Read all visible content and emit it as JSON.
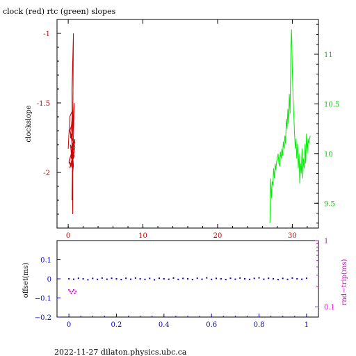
{
  "page": {
    "title": "clock (red) rtc (green) slopes",
    "footer": "2022-11-27  dilaton.physics.ubc.ca"
  },
  "colors": {
    "clock": "#d00000",
    "rtc": "#00ee00",
    "offset": "#0000cc",
    "roundtrip": "#dd00dd",
    "axis": "#000000"
  },
  "chart_data": [
    {
      "type": "line",
      "title": "clock (red) rtc (green) slopes",
      "ylabel": "clockslope",
      "xlim": [
        -1.5,
        33.5
      ],
      "ylim": [
        -2.4,
        -0.9
      ],
      "y2lim": [
        9.25,
        11.35
      ],
      "xticks": [
        0,
        10,
        20,
        30
      ],
      "yticks": [
        -1,
        -1.5,
        -2
      ],
      "y2ticks": [
        11,
        10.5,
        10,
        9.5
      ],
      "xtick_labels": [
        "0",
        "10",
        "20",
        "30"
      ],
      "ytick_labels": [
        "-1",
        "-1.5",
        "-2"
      ],
      "y2tick_labels": [
        "11",
        "10.5",
        "10",
        "9.5"
      ],
      "series": [
        {
          "name": "clock",
          "axis": "left",
          "x": [
            0.0,
            0.2,
            0.6,
            0.3,
            0.9,
            0.1,
            0.5,
            0.8,
            0.2,
            0.7,
            0.4,
            0.9,
            0.1,
            0.6,
            0.3,
            0.8,
            0.5,
            0.2,
            0.9,
            0.4,
            0.7,
            0.6,
            0.6,
            0.5,
            0.7,
            0.6,
            0.8,
            0.5,
            0.6
          ],
          "values": [
            -1.83,
            -1.6,
            -1.55,
            -1.75,
            -1.78,
            -1.92,
            -1.95,
            -1.85,
            -1.7,
            -1.62,
            -1.9,
            -1.76,
            -1.93,
            -1.97,
            -1.8,
            -1.88,
            -1.93,
            -1.97,
            -1.82,
            -1.72,
            -1.95,
            -2.0,
            -2.3,
            -1.4,
            -1.0,
            -1.7,
            -1.5,
            -2.2,
            -1.8
          ]
        },
        {
          "name": "rtc",
          "axis": "right",
          "x": [
            27.0,
            27.1,
            27.2,
            27.3,
            27.4,
            27.5,
            27.6,
            27.7,
            27.8,
            27.9,
            28.0,
            28.1,
            28.2,
            28.3,
            28.4,
            28.5,
            28.6,
            28.7,
            28.8,
            28.9,
            29.0,
            29.1,
            29.2,
            29.3,
            29.4,
            29.5,
            29.6,
            29.7,
            29.8,
            29.9,
            30.0,
            30.1,
            30.2,
            30.3,
            30.4,
            30.5,
            30.6,
            30.7,
            30.8,
            30.9,
            31.0,
            31.1,
            31.2,
            31.3,
            31.4,
            31.5,
            31.6,
            31.7,
            31.8,
            31.9,
            32.0,
            32.1,
            32.2,
            32.4
          ],
          "values": [
            9.3,
            9.75,
            9.55,
            9.72,
            9.68,
            9.85,
            9.75,
            9.9,
            9.83,
            9.92,
            9.95,
            10.0,
            9.9,
            9.87,
            10.02,
            9.95,
            10.05,
            9.98,
            10.12,
            10.05,
            10.18,
            10.1,
            10.35,
            10.25,
            10.45,
            10.3,
            10.6,
            10.4,
            11.05,
            11.25,
            10.85,
            10.55,
            10.4,
            10.2,
            10.05,
            10.15,
            9.95,
            10.1,
            9.85,
            10.0,
            9.7,
            9.9,
            9.8,
            10.05,
            9.75,
            9.95,
            9.85,
            10.1,
            9.9,
            10.2,
            10.0,
            10.15,
            10.1,
            10.18
          ]
        }
      ]
    },
    {
      "type": "scatter",
      "ylabel": "offset(ms)",
      "y2label": "rnd−trip(ms)",
      "xlim": [
        -0.05,
        1.05
      ],
      "ylim": [
        -0.2,
        0.2
      ],
      "y2lim_log": [
        0.07,
        1.0
      ],
      "xticks": [
        0,
        0.2,
        0.4,
        0.6,
        0.8,
        1
      ],
      "xtick_labels": [
        "0",
        "0.2",
        "0.4",
        "0.6",
        "0.8",
        "1"
      ],
      "yticks": [
        0.1,
        0,
        -0.1,
        -0.2
      ],
      "ytick_labels": [
        "0.1",
        "0",
        "−0.1",
        "−0.2"
      ],
      "y2ticks": [
        1,
        0.1
      ],
      "y2tick_labels": [
        "1",
        "0.1"
      ],
      "series": [
        {
          "name": "offset",
          "axis": "left",
          "x": [
            0.0,
            0.02,
            0.04,
            0.06,
            0.08,
            0.1,
            0.12,
            0.14,
            0.16,
            0.18,
            0.2,
            0.22,
            0.24,
            0.26,
            0.28,
            0.3,
            0.32,
            0.34,
            0.36,
            0.38,
            0.4,
            0.42,
            0.44,
            0.46,
            0.48,
            0.5,
            0.52,
            0.54,
            0.56,
            0.58,
            0.6,
            0.62,
            0.64,
            0.66,
            0.68,
            0.7,
            0.72,
            0.74,
            0.76,
            0.78,
            0.8,
            0.82,
            0.84,
            0.86,
            0.88,
            0.9,
            0.92,
            0.94,
            0.96,
            0.98,
            1.0
          ],
          "values": [
            0.0,
            -0.002,
            0.003,
            0.0,
            -0.005,
            0.002,
            -0.003,
            0.004,
            -0.002,
            0.003,
            0.0,
            -0.004,
            0.003,
            -0.002,
            0.004,
            0.0,
            -0.003,
            0.002,
            -0.005,
            0.003,
            0.0,
            -0.002,
            0.004,
            -0.003,
            0.002,
            0.0,
            -0.004,
            0.003,
            -0.002,
            0.005,
            -0.003,
            0.002,
            0.0,
            -0.004,
            0.003,
            -0.002,
            0.004,
            0.0,
            -0.003,
            0.002,
            0.005,
            -0.002,
            0.003,
            0.0,
            -0.004,
            0.002,
            -0.003,
            0.004,
            0.0,
            -0.002,
            0.003
          ]
        },
        {
          "name": "rnd-trip",
          "axis": "right",
          "x": [
            0.0,
            0.005,
            0.01,
            0.015,
            0.02,
            0.025,
            0.03
          ],
          "values": [
            0.18,
            0.17,
            0.16,
            0.17,
            0.18,
            0.16,
            0.17
          ]
        }
      ]
    }
  ]
}
